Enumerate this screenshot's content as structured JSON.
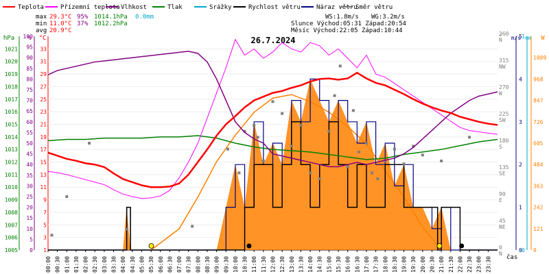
{
  "legend": [
    {
      "label": "Teplota",
      "color": "#ff0000"
    },
    {
      "label": "Přízemní teplota",
      "color": "#ff00ff"
    },
    {
      "label": "Vlhkost",
      "color": "#800080"
    },
    {
      "label": "Tlak",
      "color": "#008000"
    },
    {
      "label": "Srážky",
      "color": "#00aacc"
    },
    {
      "label": "Rychlost větru",
      "color": "#000000"
    },
    {
      "label": "Náraz větru",
      "color": "#000080"
    },
    {
      "label": "Směr větru",
      "color": "#808080"
    }
  ],
  "stats": {
    "max": {
      "label": "max",
      "temp": "29.3°C",
      "hum": "95%",
      "press": "1014.1hPa",
      "rain": "0.0mm"
    },
    "min": {
      "label": "min",
      "temp": "11.0°C",
      "hum": "37%",
      "press": "1012.2hPa"
    },
    "avg": {
      "label": "avg",
      "temp": "20.9°C"
    },
    "ws": "WS:1.8m/s",
    "wg": "WG:3.2m/s",
    "sun": "Slunce Východ:05:31  Západ:20:54",
    "moon": "Měsíc  Východ:22:05  Západ:10:44"
  },
  "title": "26.7.2024",
  "axis_units": {
    "press": "hPa",
    "hum": "%",
    "temp": "°C",
    "dir": "°",
    "wind": "m/s",
    "rain": "mm",
    "sun": "W"
  },
  "x_axis_label": "čas",
  "chart_data": {
    "type": "line",
    "title": "26.7.2024",
    "x_ticks": [
      "00:00",
      "00:30",
      "01:00",
      "01:30",
      "02:00",
      "02:30",
      "03:00",
      "03:30",
      "04:00",
      "04:30",
      "05:00",
      "05:30",
      "06:00",
      "06:30",
      "07:00",
      "07:30",
      "08:00",
      "08:30",
      "09:00",
      "09:30",
      "10:00",
      "10:30",
      "11:00",
      "11:30",
      "12:00",
      "12:30",
      "13:00",
      "13:30",
      "14:00",
      "14:30",
      "15:00",
      "15:30",
      "16:00",
      "16:30",
      "17:00",
      "17:30",
      "18:00",
      "18:30",
      "19:00",
      "19:30",
      "20:00",
      "20:30",
      "21:00",
      "21:30",
      "22:00",
      "22:30",
      "23:00",
      "23:30"
    ],
    "axes": {
      "pressure_hPa": {
        "range": [
          1005,
          1022
        ],
        "ticks": [
          "1005",
          "1006",
          "1007",
          "1008",
          "1009",
          "1010",
          "1011",
          "1012",
          "1013",
          "1014",
          "1015",
          "1016",
          "1017",
          "1018",
          "1019",
          "1020",
          "1021"
        ]
      },
      "humidity_pct": {
        "range": [
          0,
          100
        ],
        "ticks": [
          "0",
          "5",
          "10",
          "15",
          "20",
          "25",
          "30",
          "35",
          "40",
          "45",
          "50",
          "55",
          "60",
          "65",
          "70",
          "75",
          "80",
          "85",
          "90",
          "95",
          "100"
        ]
      },
      "temperature_C": {
        "range": [
          1,
          35
        ],
        "ticks": [
          "1",
          "3",
          "5",
          "7",
          "9",
          "11",
          "13",
          "15",
          "17",
          "19",
          "21",
          "23",
          "25",
          "27",
          "29",
          "31",
          "33"
        ]
      },
      "direction_deg": {
        "range": [
          0,
          360
        ],
        "ticks": [
          {
            "deg": "0",
            "dir": "N"
          },
          {
            "deg": "45",
            "dir": "NE"
          },
          {
            "deg": "90",
            "dir": "E"
          },
          {
            "deg": "135",
            "dir": "SE"
          },
          {
            "deg": "180",
            "dir": "S"
          },
          {
            "deg": "225",
            "dir": "SW"
          },
          {
            "deg": "270",
            "dir": "W"
          },
          {
            "deg": "315",
            "dir": "NW"
          },
          {
            "deg": "360",
            "dir": "N"
          }
        ]
      },
      "wind_ms": {
        "range": [
          0,
          5
        ],
        "ticks": [
          "0",
          "1",
          "2",
          "3",
          "4",
          "5"
        ]
      },
      "rain_mm": {
        "range": [
          0,
          1
        ],
        "ticks": [
          "0",
          "1"
        ]
      },
      "solar_W": {
        "range": [
          0,
          1210
        ],
        "ticks": [
          "0",
          "121",
          "242",
          "363",
          "484",
          "605",
          "726",
          "847",
          "968",
          "1089"
        ]
      }
    },
    "series": [
      {
        "name": "Teplota",
        "axis": "temperature_C",
        "color": "#ff0000",
        "x": [
          0,
          0.5,
          1,
          1.5,
          2,
          2.5,
          3,
          3.5,
          4,
          4.5,
          5,
          5.5,
          6,
          6.5,
          7,
          7.5,
          8,
          8.5,
          9,
          9.5,
          10,
          10.5,
          11,
          11.5,
          12,
          12.5,
          13,
          13.5,
          14,
          14.5,
          15,
          15.5,
          16,
          16.5,
          17,
          17.5,
          18,
          18.5,
          19,
          19.5,
          20,
          20.5,
          21,
          21.5,
          22,
          22.5,
          23,
          23.5,
          24
        ],
        "y": [
          16.5,
          16,
          15.5,
          15.2,
          14.8,
          14.6,
          14.2,
          13.2,
          12.3,
          11.8,
          11.3,
          11,
          11,
          11.1,
          11.6,
          13,
          15,
          17,
          19.2,
          21,
          22.3,
          23.7,
          24.8,
          25.4,
          26,
          26.3,
          26.8,
          27.2,
          27.8,
          28.2,
          28.3,
          28.1,
          28.3,
          29.2,
          28.3,
          27.6,
          27.2,
          26.5,
          25.8,
          25,
          24.3,
          23.7,
          23.2,
          22.8,
          22.2,
          21.8,
          21.4,
          21.1,
          20.9
        ]
      },
      {
        "name": "Přízemní teplota",
        "axis": "temperature_C",
        "color": "#ff00ff",
        "x": [
          0,
          0.5,
          1,
          1.5,
          2,
          2.5,
          3,
          3.5,
          4,
          4.5,
          5,
          5.5,
          6,
          6.5,
          7,
          7.5,
          8,
          8.5,
          9,
          9.5,
          10,
          10.5,
          11,
          11.5,
          12,
          12.5,
          13,
          13.5,
          14,
          14.5,
          15,
          15.5,
          16,
          16.5,
          17,
          17.5,
          18,
          18.5,
          19,
          19.5,
          20,
          20.5,
          21,
          21.5,
          22,
          22.5,
          23,
          23.5,
          24
        ],
        "y": [
          13.5,
          13.3,
          13,
          12.6,
          12.2,
          11.8,
          11.4,
          10.6,
          9.9,
          9.5,
          9.2,
          9.3,
          9.6,
          10.5,
          12.5,
          15,
          18,
          22,
          26,
          30,
          34.5,
          32,
          33,
          31.5,
          32.5,
          34,
          33,
          32.5,
          34,
          33.5,
          32,
          33,
          31.5,
          30,
          32,
          29,
          28.5,
          27.5,
          26.5,
          25.5,
          24.5,
          23.5,
          22.5,
          21.5,
          20.5,
          20,
          19.8,
          19.6,
          19.4
        ]
      },
      {
        "name": "Vlhkost",
        "axis": "humidity_pct",
        "color": "#800080",
        "x": [
          0,
          0.5,
          1,
          1.5,
          2,
          2.5,
          3,
          3.5,
          4,
          4.5,
          5,
          5.5,
          6,
          6.5,
          7,
          7.5,
          8,
          8.5,
          9,
          9.5,
          10,
          10.5,
          11,
          11.5,
          12,
          12.5,
          13,
          13.5,
          14,
          14.5,
          15,
          15.5,
          16,
          16.5,
          17,
          17.5,
          18,
          18.5,
          19,
          19.5,
          20,
          20.5,
          21,
          21.5,
          22,
          22.5,
          23,
          23.5,
          24
        ],
        "y": [
          82,
          84,
          85,
          86,
          87,
          88,
          88.5,
          89,
          89.5,
          90,
          90.5,
          91,
          91.5,
          92,
          92.5,
          93,
          92,
          88,
          80,
          70,
          60,
          55,
          52,
          50,
          45,
          44,
          43,
          42,
          41,
          40,
          39,
          39,
          40,
          41,
          40,
          41,
          42,
          43,
          45,
          48,
          52,
          56,
          60,
          64,
          67,
          70,
          72,
          73,
          74
        ]
      },
      {
        "name": "Tlak",
        "axis": "pressure_hPa",
        "color": "#008000",
        "x": [
          0,
          1,
          2,
          3,
          4,
          5,
          6,
          7,
          8,
          9,
          10,
          11,
          12,
          13,
          14,
          15,
          16,
          17,
          18,
          19,
          20,
          21,
          22,
          23,
          24
        ],
        "y": [
          1013.7,
          1013.8,
          1013.8,
          1013.9,
          1013.9,
          1013.9,
          1014.0,
          1014.0,
          1014.1,
          1013.9,
          1013.5,
          1013.2,
          1013.0,
          1012.9,
          1012.8,
          1012.6,
          1012.4,
          1012.2,
          1012.3,
          1012.6,
          1012.8,
          1013.0,
          1013.3,
          1013.6,
          1013.8
        ]
      },
      {
        "name": "Rychlost větru",
        "axis": "wind_ms",
        "color": "#000000",
        "x": [
          0,
          4,
          4.2,
          4.4,
          10,
          10.5,
          11,
          12,
          12.5,
          13,
          13.5,
          14,
          14.5,
          15,
          15.5,
          16,
          16.5,
          17,
          18,
          19,
          20,
          20.8,
          21,
          22,
          24
        ],
        "y": [
          0,
          0,
          1,
          0,
          0,
          1,
          2,
          1,
          2,
          3,
          2,
          1,
          2,
          3,
          2,
          1,
          2,
          1,
          2,
          1,
          1,
          0,
          1,
          0,
          0
        ]
      },
      {
        "name": "Náraz větru",
        "axis": "wind_ms",
        "color": "#000080",
        "x": [
          0,
          4,
          4.2,
          4.4,
          9,
          9.5,
          10,
          10.5,
          11,
          11.5,
          12,
          12.5,
          13,
          13.5,
          14,
          14.5,
          15,
          15.5,
          16,
          16.5,
          17,
          17.5,
          18,
          18.5,
          19,
          19.5,
          20,
          20.5,
          21,
          21.5,
          22,
          24
        ],
        "y": [
          0,
          0,
          1,
          0,
          0,
          1,
          2,
          1,
          3,
          2,
          2.5,
          2,
          3.5,
          3,
          4,
          3.5,
          3,
          3.5,
          3,
          2.5,
          3,
          2,
          2.5,
          1.5,
          2,
          1,
          1,
          0.5,
          1,
          0,
          0,
          0
        ]
      },
      {
        "name": "Směr větru",
        "axis": "direction_deg",
        "color": "#808080",
        "x": [
          0.2,
          1,
          2.2,
          4.2,
          7.7,
          9.6,
          10.2,
          10.5,
          11,
          11.2,
          11.5,
          12,
          12.5,
          13,
          13.5,
          14,
          14.5,
          15,
          15.3,
          15.6,
          16,
          16.3,
          16.6,
          17,
          17.3,
          17.6,
          18,
          18.5,
          19,
          19.5,
          20,
          21,
          22.5
        ],
        "y": [
          25,
          90,
          180,
          35,
          40,
          170,
          130,
          200,
          210,
          190,
          150,
          250,
          230,
          175,
          210,
          130,
          120,
          200,
          260,
          310,
          140,
          235,
          165,
          180,
          130,
          120,
          150,
          170,
          145,
          175,
          160,
          150,
          190
        ]
      },
      {
        "name": "Slunce",
        "axis": "solar_W",
        "color": "#ff8000",
        "x": [
          5.5,
          7,
          8,
          9,
          10,
          11,
          12,
          13,
          14,
          15,
          16,
          17,
          18,
          19,
          20,
          21
        ],
        "y": [
          0,
          120,
          300,
          500,
          650,
          780,
          860,
          880,
          840,
          780,
          700,
          600,
          450,
          300,
          130,
          0
        ]
      }
    ]
  }
}
